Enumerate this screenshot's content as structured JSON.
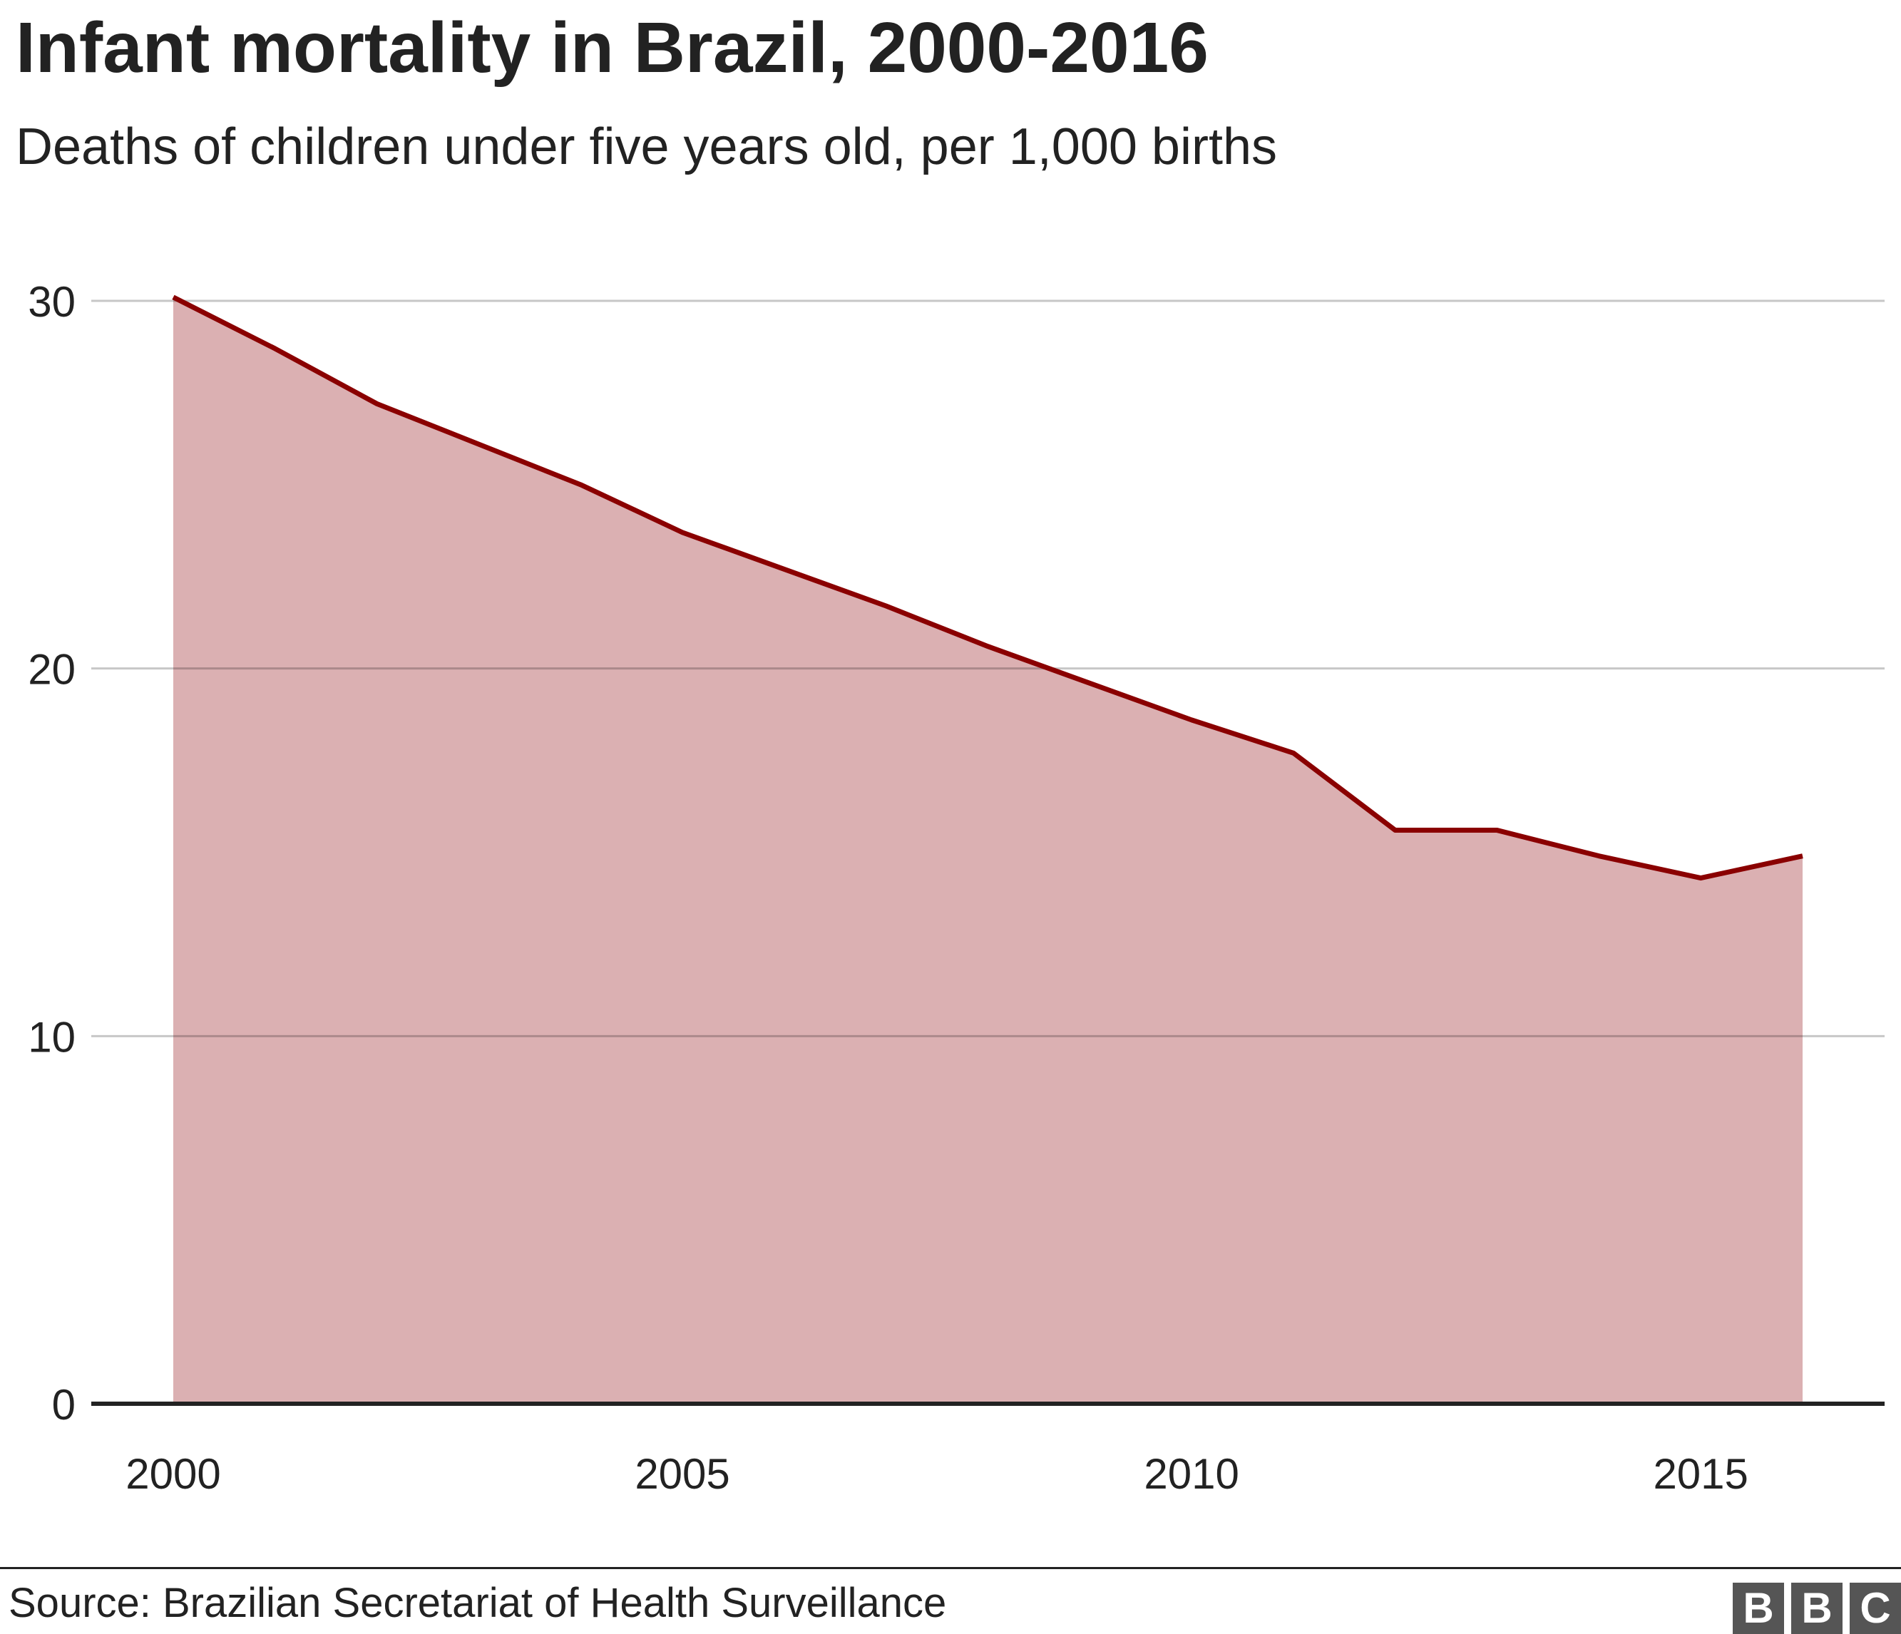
{
  "chart_data": {
    "type": "area",
    "title": "Infant mortality in Brazil, 2000-2016",
    "subtitle": "Deaths of children under five years old, per 1,000 births",
    "x": [
      2000,
      2001,
      2002,
      2003,
      2004,
      2005,
      2006,
      2007,
      2008,
      2009,
      2010,
      2011,
      2012,
      2013,
      2014,
      2015,
      2016
    ],
    "values": [
      30.1,
      28.7,
      27.2,
      26.1,
      25.0,
      23.7,
      22.7,
      21.7,
      20.6,
      19.6,
      18.6,
      17.7,
      15.6,
      15.6,
      14.9,
      14.3,
      14.9
    ],
    "ylim": [
      0,
      30
    ],
    "yticks": [
      "0",
      "10",
      "20",
      "30"
    ],
    "xticks": [
      "2000",
      "2005",
      "2010",
      "2015"
    ],
    "grid": true,
    "line_color": "#8a0000",
    "fill_color": "#dbb0b2",
    "source": "Source: Brazilian Secretariat of Health Surveillance"
  },
  "logo": "BBC"
}
